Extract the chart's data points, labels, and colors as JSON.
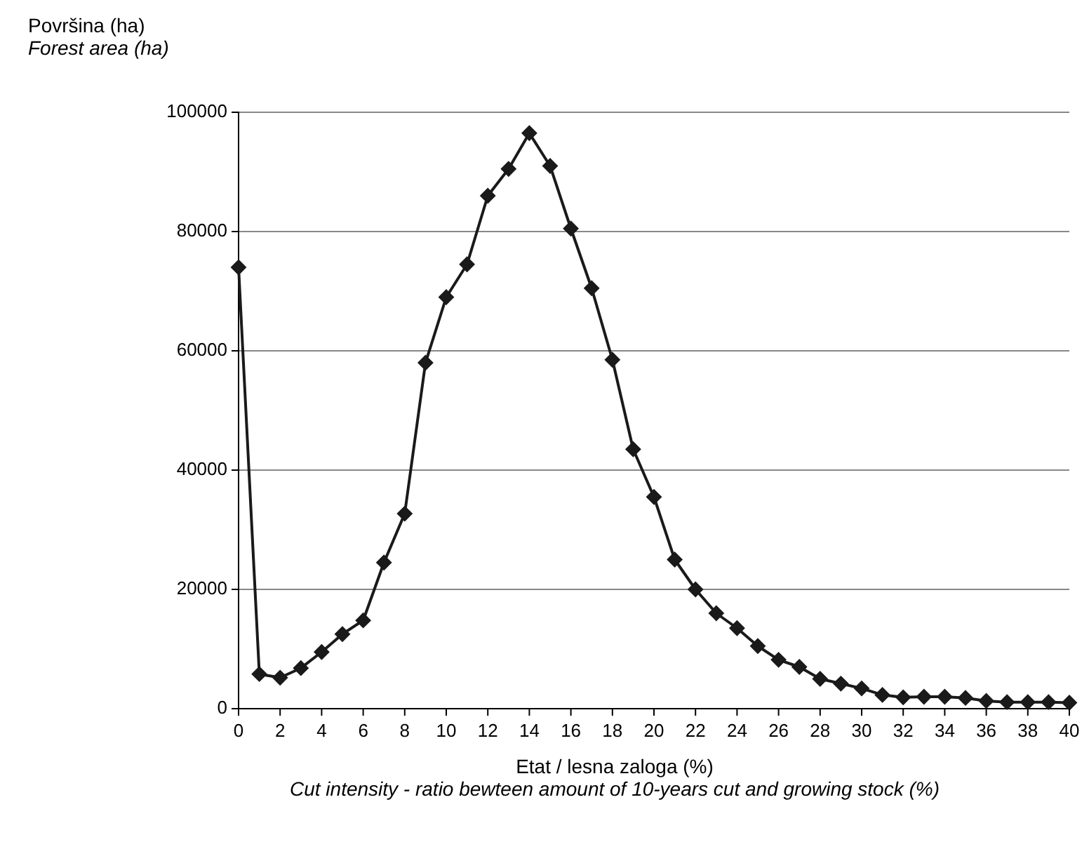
{
  "chart_data": {
    "type": "line",
    "xlabel": "Etat / lesna zaloga (%)\nCut intensity - ratio bewteen amount of 10-years cut and growing stock (%)",
    "ylabel": "Površina (ha)\nForest area (ha)",
    "x": [
      0,
      1,
      2,
      3,
      4,
      5,
      6,
      7,
      8,
      9,
      10,
      11,
      12,
      13,
      14,
      15,
      16,
      17,
      18,
      19,
      20,
      21,
      22,
      23,
      24,
      25,
      26,
      27,
      28,
      29,
      30,
      31,
      32,
      33,
      34,
      35,
      36,
      37,
      38,
      39,
      40
    ],
    "series": [
      {
        "color": "#1a1a1a",
        "values": [
          74000,
          5800,
          5200,
          6800,
          9500,
          12500,
          14800,
          24500,
          32700,
          58000,
          69000,
          74500,
          86000,
          90500,
          96500,
          91000,
          80500,
          70500,
          58500,
          43500,
          35500,
          25000,
          20000,
          16000,
          13500,
          10500,
          8200,
          7000,
          5000,
          4200,
          3400,
          2300,
          1900,
          2000,
          2000,
          1800,
          1300,
          1100,
          1100,
          1100,
          1000
        ]
      }
    ],
    "xlim": [
      0,
      40
    ],
    "xticks": [
      0,
      2,
      4,
      6,
      8,
      10,
      12,
      14,
      16,
      18,
      20,
      22,
      24,
      26,
      28,
      30,
      32,
      34,
      36,
      38,
      40
    ],
    "ylim": [
      0,
      100000
    ],
    "yticks": [
      0,
      20000,
      40000,
      60000,
      80000,
      100000
    ],
    "grid": "y",
    "marker": "diamond",
    "line_style": "solid",
    "legend": false
  }
}
